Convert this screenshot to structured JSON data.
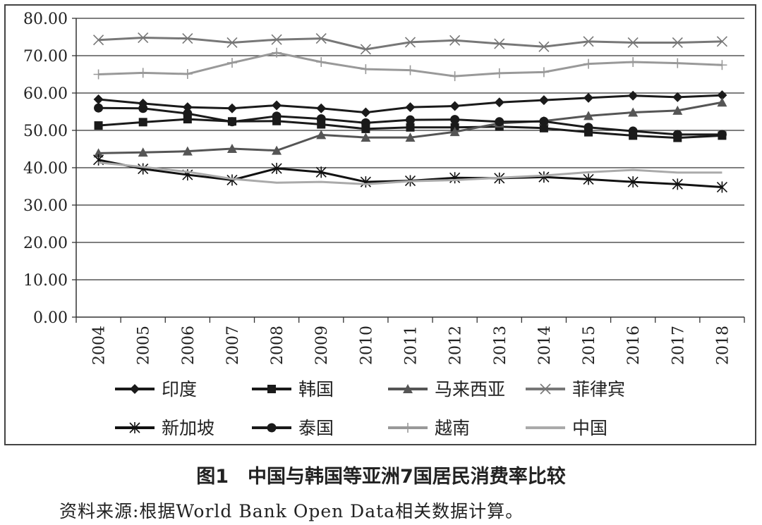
{
  "chart_data": {
    "type": "line",
    "title": "",
    "xlabel": "",
    "ylabel": "",
    "ylim": [
      0,
      80
    ],
    "y_ticks": [
      "0.00",
      "10.00",
      "20.00",
      "30.00",
      "40.00",
      "50.00",
      "60.00",
      "70.00",
      "80.00"
    ],
    "categories": [
      "2004",
      "2005",
      "2006",
      "2007",
      "2008",
      "2009",
      "2010",
      "2011",
      "2012",
      "2013",
      "2014",
      "2015",
      "2016",
      "2017",
      "2018"
    ],
    "grid": "horizontal",
    "legend_position": "bottom",
    "series": [
      {
        "name": "印度",
        "marker": "diamond",
        "color": "#1a1a1a",
        "values": [
          58.3,
          57.2,
          56.2,
          55.9,
          56.7,
          55.9,
          54.8,
          56.2,
          56.5,
          57.5,
          58.1,
          58.7,
          59.3,
          58.9,
          59.4
        ]
      },
      {
        "name": "韩国",
        "marker": "square",
        "color": "#1a1a1a",
        "values": [
          51.3,
          52.2,
          53.0,
          52.4,
          52.5,
          51.6,
          50.4,
          50.8,
          50.8,
          51.0,
          50.6,
          49.5,
          48.6,
          48.0,
          48.6
        ]
      },
      {
        "name": "马来西亚",
        "marker": "triangle",
        "color": "#555555",
        "values": [
          43.9,
          44.1,
          44.4,
          45.1,
          44.6,
          48.8,
          48.1,
          48.1,
          49.6,
          51.9,
          52.5,
          53.9,
          54.8,
          55.3,
          57.5
        ]
      },
      {
        "name": "菲律宾",
        "marker": "x",
        "color": "#777777",
        "values": [
          74.2,
          74.8,
          74.6,
          73.5,
          74.3,
          74.6,
          71.7,
          73.6,
          74.1,
          73.2,
          72.4,
          73.8,
          73.5,
          73.5,
          73.8
        ]
      },
      {
        "name": "新加坡",
        "marker": "asterisk",
        "color": "#111111",
        "values": [
          42.1,
          39.7,
          38.1,
          36.7,
          39.8,
          38.8,
          36.2,
          36.5,
          37.3,
          37.2,
          37.5,
          36.9,
          36.2,
          35.6,
          34.8
        ]
      },
      {
        "name": "泰国",
        "marker": "circle",
        "color": "#1a1a1a",
        "values": [
          56.0,
          55.9,
          54.5,
          52.3,
          53.8,
          53.1,
          52.0,
          52.8,
          52.9,
          52.3,
          52.4,
          50.8,
          49.8,
          48.9,
          48.9
        ]
      },
      {
        "name": "越南",
        "marker": "plus",
        "color": "#999999",
        "values": [
          65.0,
          65.4,
          65.1,
          68.1,
          70.8,
          68.3,
          66.4,
          66.1,
          64.5,
          65.3,
          65.6,
          67.8,
          68.3,
          68.0,
          67.5
        ]
      },
      {
        "name": "中国",
        "marker": "none",
        "color": "#aaaaaa",
        "values": [
          41.4,
          40.2,
          38.9,
          37.0,
          36.0,
          36.2,
          35.6,
          36.4,
          36.7,
          37.3,
          37.9,
          38.8,
          39.4,
          38.7,
          38.7
        ]
      }
    ]
  },
  "caption": "图1　中国与韩国等亚洲7国居民消费率比较",
  "source_note": "资料来源:根据World Bank Open Data相关数据计算。"
}
